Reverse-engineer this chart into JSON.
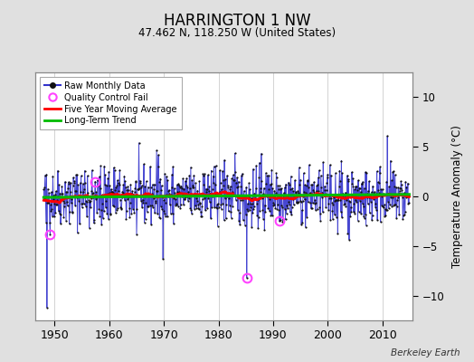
{
  "title": "HARRINGTON 1 NW",
  "subtitle": "47.462 N, 118.250 W (United States)",
  "ylabel": "Temperature Anomaly (°C)",
  "watermark": "Berkeley Earth",
  "xlim": [
    1946.5,
    2015.5
  ],
  "ylim": [
    -12.5,
    12.5
  ],
  "yticks": [
    -10,
    -5,
    0,
    5,
    10
  ],
  "xticks": [
    1950,
    1960,
    1970,
    1980,
    1990,
    2000,
    2010
  ],
  "start_year": 1948,
  "n_months": 804,
  "seed": 42,
  "raw_color": "#3333cc",
  "dot_color": "#111111",
  "ma_color": "#ff0000",
  "trend_color": "#00bb00",
  "qc_color": "#ff44ff",
  "bg_color": "#ffffff",
  "outer_bg": "#e0e0e0",
  "grid_color": "#cccccc",
  "qc_indices": [
    14,
    113,
    446,
    518
  ],
  "qc_values": [
    -3.8,
    1.5,
    -8.2,
    -2.5
  ],
  "extreme_index": 14,
  "extreme_low_index": 446,
  "extreme_low_val": -8.2,
  "spike_low_index": 7,
  "spike_low_val": -11.5
}
